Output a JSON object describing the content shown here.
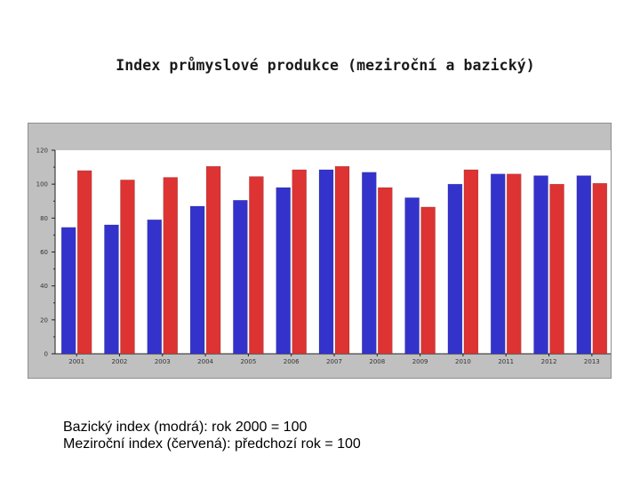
{
  "slide": {
    "title": "Index průmyslové produkce (meziroční a bazický)",
    "caption_line1": "Bazický index (modrá): rok 2000 = 100",
    "caption_line2": "Meziroční index (červená): předchozí rok = 100"
  },
  "colors": {
    "series_blue": "#3333cc",
    "series_red": "#dd3333",
    "plot_background": "#ffffff",
    "frame_background": "#c0c0c0"
  },
  "chart_data": {
    "type": "bar",
    "title": "",
    "xlabel": "",
    "ylabel": "",
    "ylim": [
      0,
      120
    ],
    "yticks": [
      0,
      20,
      40,
      60,
      80,
      100,
      120
    ],
    "grid": false,
    "legend": "none",
    "categories": [
      "2001",
      "2002",
      "2003",
      "2004",
      "2005",
      "2006",
      "2007",
      "2008",
      "2009",
      "2010",
      "2011",
      "2012",
      "2013"
    ],
    "series": [
      {
        "color": "#3333cc",
        "values": [
          74.5,
          76,
          79,
          87,
          90.5,
          98,
          108.5,
          107,
          92,
          100,
          106,
          105,
          105
        ]
      },
      {
        "color": "#dd3333",
        "values": [
          108,
          102.5,
          104,
          110.5,
          104.5,
          108.5,
          110.5,
          98,
          86.5,
          108.5,
          106,
          100,
          100.5
        ]
      }
    ]
  }
}
